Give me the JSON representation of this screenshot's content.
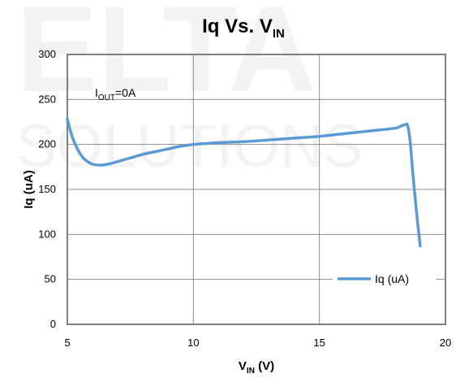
{
  "watermark": {
    "line1": "ELTA",
    "line2": "SOLUTIONS"
  },
  "chart_data": {
    "type": "line",
    "title": "Iq Vs. V",
    "title_subscript": "IN",
    "xlabel": "V",
    "xlabel_subscript": "IN",
    "xlabel_suffix": " (V)",
    "ylabel": "Iq (uA)",
    "xlim": [
      5,
      20
    ],
    "ylim": [
      0,
      300
    ],
    "x_ticks": [
      5,
      10,
      15,
      20
    ],
    "y_ticks": [
      0,
      50,
      100,
      150,
      200,
      250,
      300
    ],
    "grid": true,
    "legend_placement": "bottom-right",
    "annotation": {
      "prefix": "I",
      "subscript": "OUT",
      "suffix": "=0A"
    },
    "series": [
      {
        "name": "Iq (uA)",
        "color": "#5b9bd5",
        "x": [
          5.0,
          5.2,
          5.4,
          5.6,
          5.8,
          6.0,
          6.3,
          6.6,
          7.0,
          7.5,
          8.0,
          8.5,
          9.0,
          9.5,
          10.0,
          10.5,
          11.0,
          12.0,
          13.0,
          14.0,
          15.0,
          16.0,
          17.0,
          18.0,
          18.2,
          18.4,
          18.5,
          18.6,
          18.7,
          18.8,
          18.9,
          19.0
        ],
        "y": [
          228,
          208,
          195,
          186,
          181,
          178,
          177,
          178,
          181,
          185,
          189,
          192,
          195,
          198,
          200,
          201,
          202,
          203,
          205,
          207,
          209,
          212,
          215,
          218,
          220,
          222,
          221,
          203,
          170,
          140,
          112,
          87
        ]
      }
    ]
  }
}
